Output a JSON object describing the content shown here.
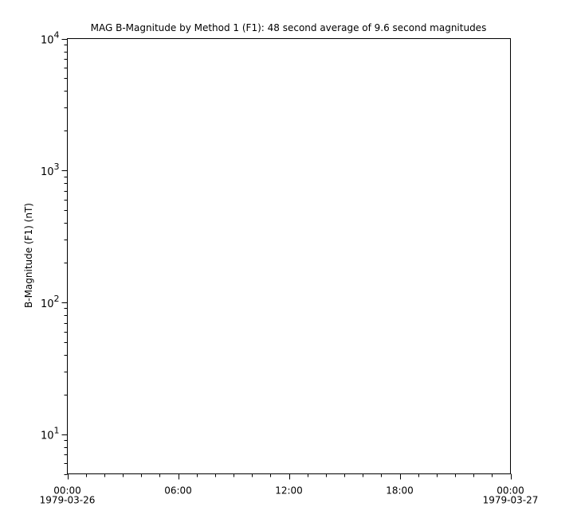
{
  "chart_data": {
    "type": "line",
    "title": "MAG  B-Magnitude by Method 1 (F1): 48 second average of 9.6 second magnitudes",
    "ylabel": "B-Magnitude (F1) (nT)",
    "xlabel": "",
    "yscale": "log",
    "ylim": [
      5,
      10000
    ],
    "yticks": [
      {
        "value": 10,
        "base": "10",
        "exp": "1"
      },
      {
        "value": 100,
        "base": "10",
        "exp": "2"
      },
      {
        "value": 1000,
        "base": "10",
        "exp": "3"
      },
      {
        "value": 10000,
        "base": "10",
        "exp": "4"
      }
    ],
    "xlim": [
      "1979-03-26 00:00",
      "1979-03-27 00:00"
    ],
    "xticks": [
      {
        "hours": 0,
        "label": "00:00",
        "date": "1979-03-26"
      },
      {
        "hours": 6,
        "label": "06:00",
        "date": ""
      },
      {
        "hours": 12,
        "label": "12:00",
        "date": ""
      },
      {
        "hours": 18,
        "label": "18:00",
        "date": ""
      },
      {
        "hours": 24,
        "label": "00:00",
        "date": "1979-03-27"
      }
    ],
    "series": [],
    "grid": false
  }
}
